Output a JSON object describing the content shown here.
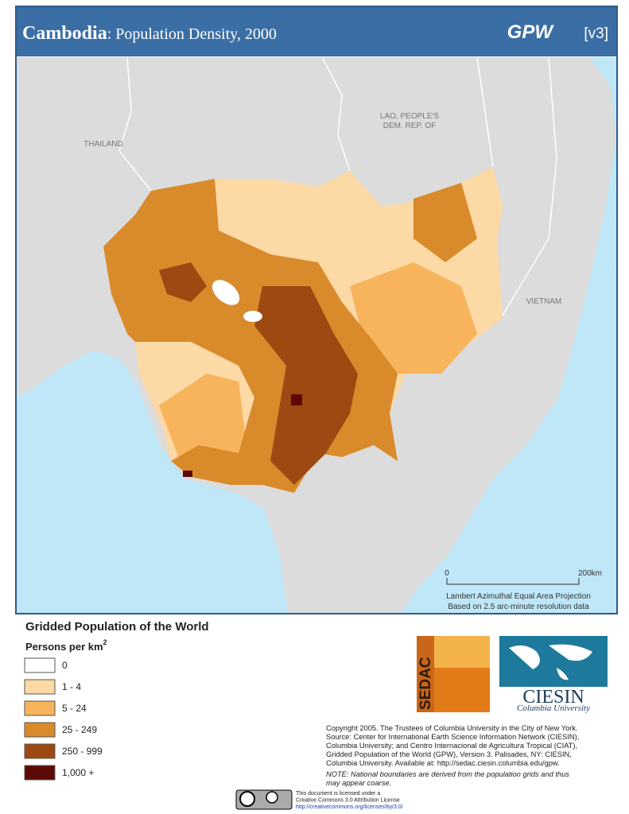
{
  "header": {
    "title": "Cambodia",
    "subtitle": ": Population Density, 2000",
    "brand": "GPW",
    "version": "[v3]"
  },
  "map": {
    "labels": [
      "THAILAND",
      "LAO, PEOPLE'S",
      "DEM. REP. OF",
      "VIETNAM"
    ],
    "scale": {
      "start": "0",
      "end": "200km"
    },
    "projection": "Lambert Azimuthal Equal Area Projection",
    "resolution": "Based on 2.5 arc-minute resolution data"
  },
  "legend": {
    "title": "Gridded Population of the World",
    "unit": "Persons per km",
    "unit_sup": "2",
    "items": [
      {
        "label": "0",
        "color": "#ffffff"
      },
      {
        "label": "1 - 4",
        "color": "#fdd9a6"
      },
      {
        "label": "5 - 24",
        "color": "#f7b45c"
      },
      {
        "label": "25 - 249",
        "color": "#d98a2b"
      },
      {
        "label": "250 - 999",
        "color": "#9c4a12"
      },
      {
        "label": "1,000 +",
        "color": "#5c0a06"
      }
    ]
  },
  "logos": {
    "sedac": "SEDAC",
    "ciesin": "CIESIN",
    "university": "Columbia University"
  },
  "credits": [
    "Copyright 2005. The Trustees of Columbia University in the City of New York.",
    "Source: Center for International Earth Science Information Network (CIESIN),",
    "Columbia University; and Centro Internacional de Agricultura Tropical (CIAT),",
    "Gridded Population of the World (GPW),  Version 3.  Palisades, NY: CIESIN,",
    "Columbia University.   Available at:    http://sedac.ciesin.columbia.edu/gpw."
  ],
  "note": [
    "NOTE: National boundaries are derived from the population grids and thus",
    "may appear coarse."
  ],
  "license": [
    "This document is licensed under a",
    "Creative Commons 3.0 Attribution License",
    "http://creativecommons.org/licenses/by/3.0/"
  ]
}
